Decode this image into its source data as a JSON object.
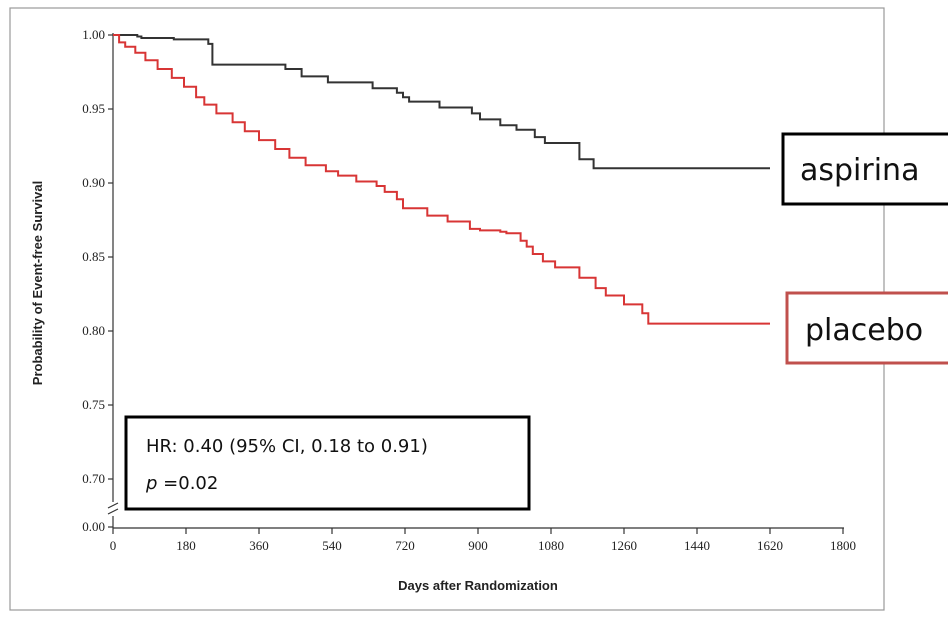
{
  "chart_data": {
    "type": "line",
    "title": "",
    "xlabel": "Days after Randomization",
    "ylabel": "Probability of Event-free Survival",
    "xlim": [
      0,
      1800
    ],
    "ylim_visible": [
      0.7,
      1.0
    ],
    "y_axis_break": true,
    "y_break_label": "0.00",
    "x_ticks": [
      "0",
      "180",
      "360",
      "540",
      "720",
      "900",
      "1080",
      "1260",
      "1440",
      "1620",
      "1800"
    ],
    "y_ticks": [
      "1.00",
      "0.95",
      "0.90",
      "0.85",
      "0.80",
      "0.75",
      "0.70"
    ],
    "grid": false,
    "legend_placement": "right",
    "series": [
      {
        "name": "aspirina",
        "color": "#333333",
        "legend_border": "#000000",
        "step": true,
        "x": [
          0,
          55,
          60,
          70,
          150,
          235,
          245,
          425,
          465,
          530,
          640,
          700,
          715,
          730,
          805,
          885,
          905,
          955,
          995,
          1040,
          1065,
          1150,
          1185,
          1620
        ],
        "y": [
          1.0,
          1.0,
          0.999,
          0.998,
          0.997,
          0.994,
          0.98,
          0.977,
          0.972,
          0.968,
          0.964,
          0.961,
          0.958,
          0.955,
          0.951,
          0.947,
          0.943,
          0.939,
          0.936,
          0.931,
          0.927,
          0.916,
          0.91,
          0.91
        ]
      },
      {
        "name": "placebo",
        "color": "#d83535",
        "legend_border": "#c0504d",
        "step": true,
        "x": [
          0,
          15,
          30,
          55,
          80,
          110,
          145,
          175,
          205,
          225,
          255,
          295,
          325,
          360,
          400,
          435,
          475,
          525,
          555,
          600,
          650,
          670,
          700,
          715,
          775,
          825,
          880,
          905,
          955,
          970,
          1005,
          1020,
          1035,
          1060,
          1090,
          1150,
          1190,
          1215,
          1260,
          1305,
          1320,
          1620
        ],
        "y": [
          1.0,
          0.995,
          0.992,
          0.988,
          0.983,
          0.977,
          0.971,
          0.965,
          0.958,
          0.953,
          0.947,
          0.941,
          0.935,
          0.929,
          0.923,
          0.917,
          0.912,
          0.908,
          0.905,
          0.901,
          0.898,
          0.894,
          0.889,
          0.883,
          0.878,
          0.874,
          0.869,
          0.868,
          0.867,
          0.866,
          0.861,
          0.857,
          0.852,
          0.847,
          0.843,
          0.836,
          0.829,
          0.824,
          0.818,
          0.812,
          0.805,
          0.805
        ]
      }
    ],
    "annotation": {
      "line1": "HR: 0.40 (95% CI, 0.18 to 0.91)",
      "line2_italic": "p",
      "line2_rest": " =0.02"
    }
  }
}
